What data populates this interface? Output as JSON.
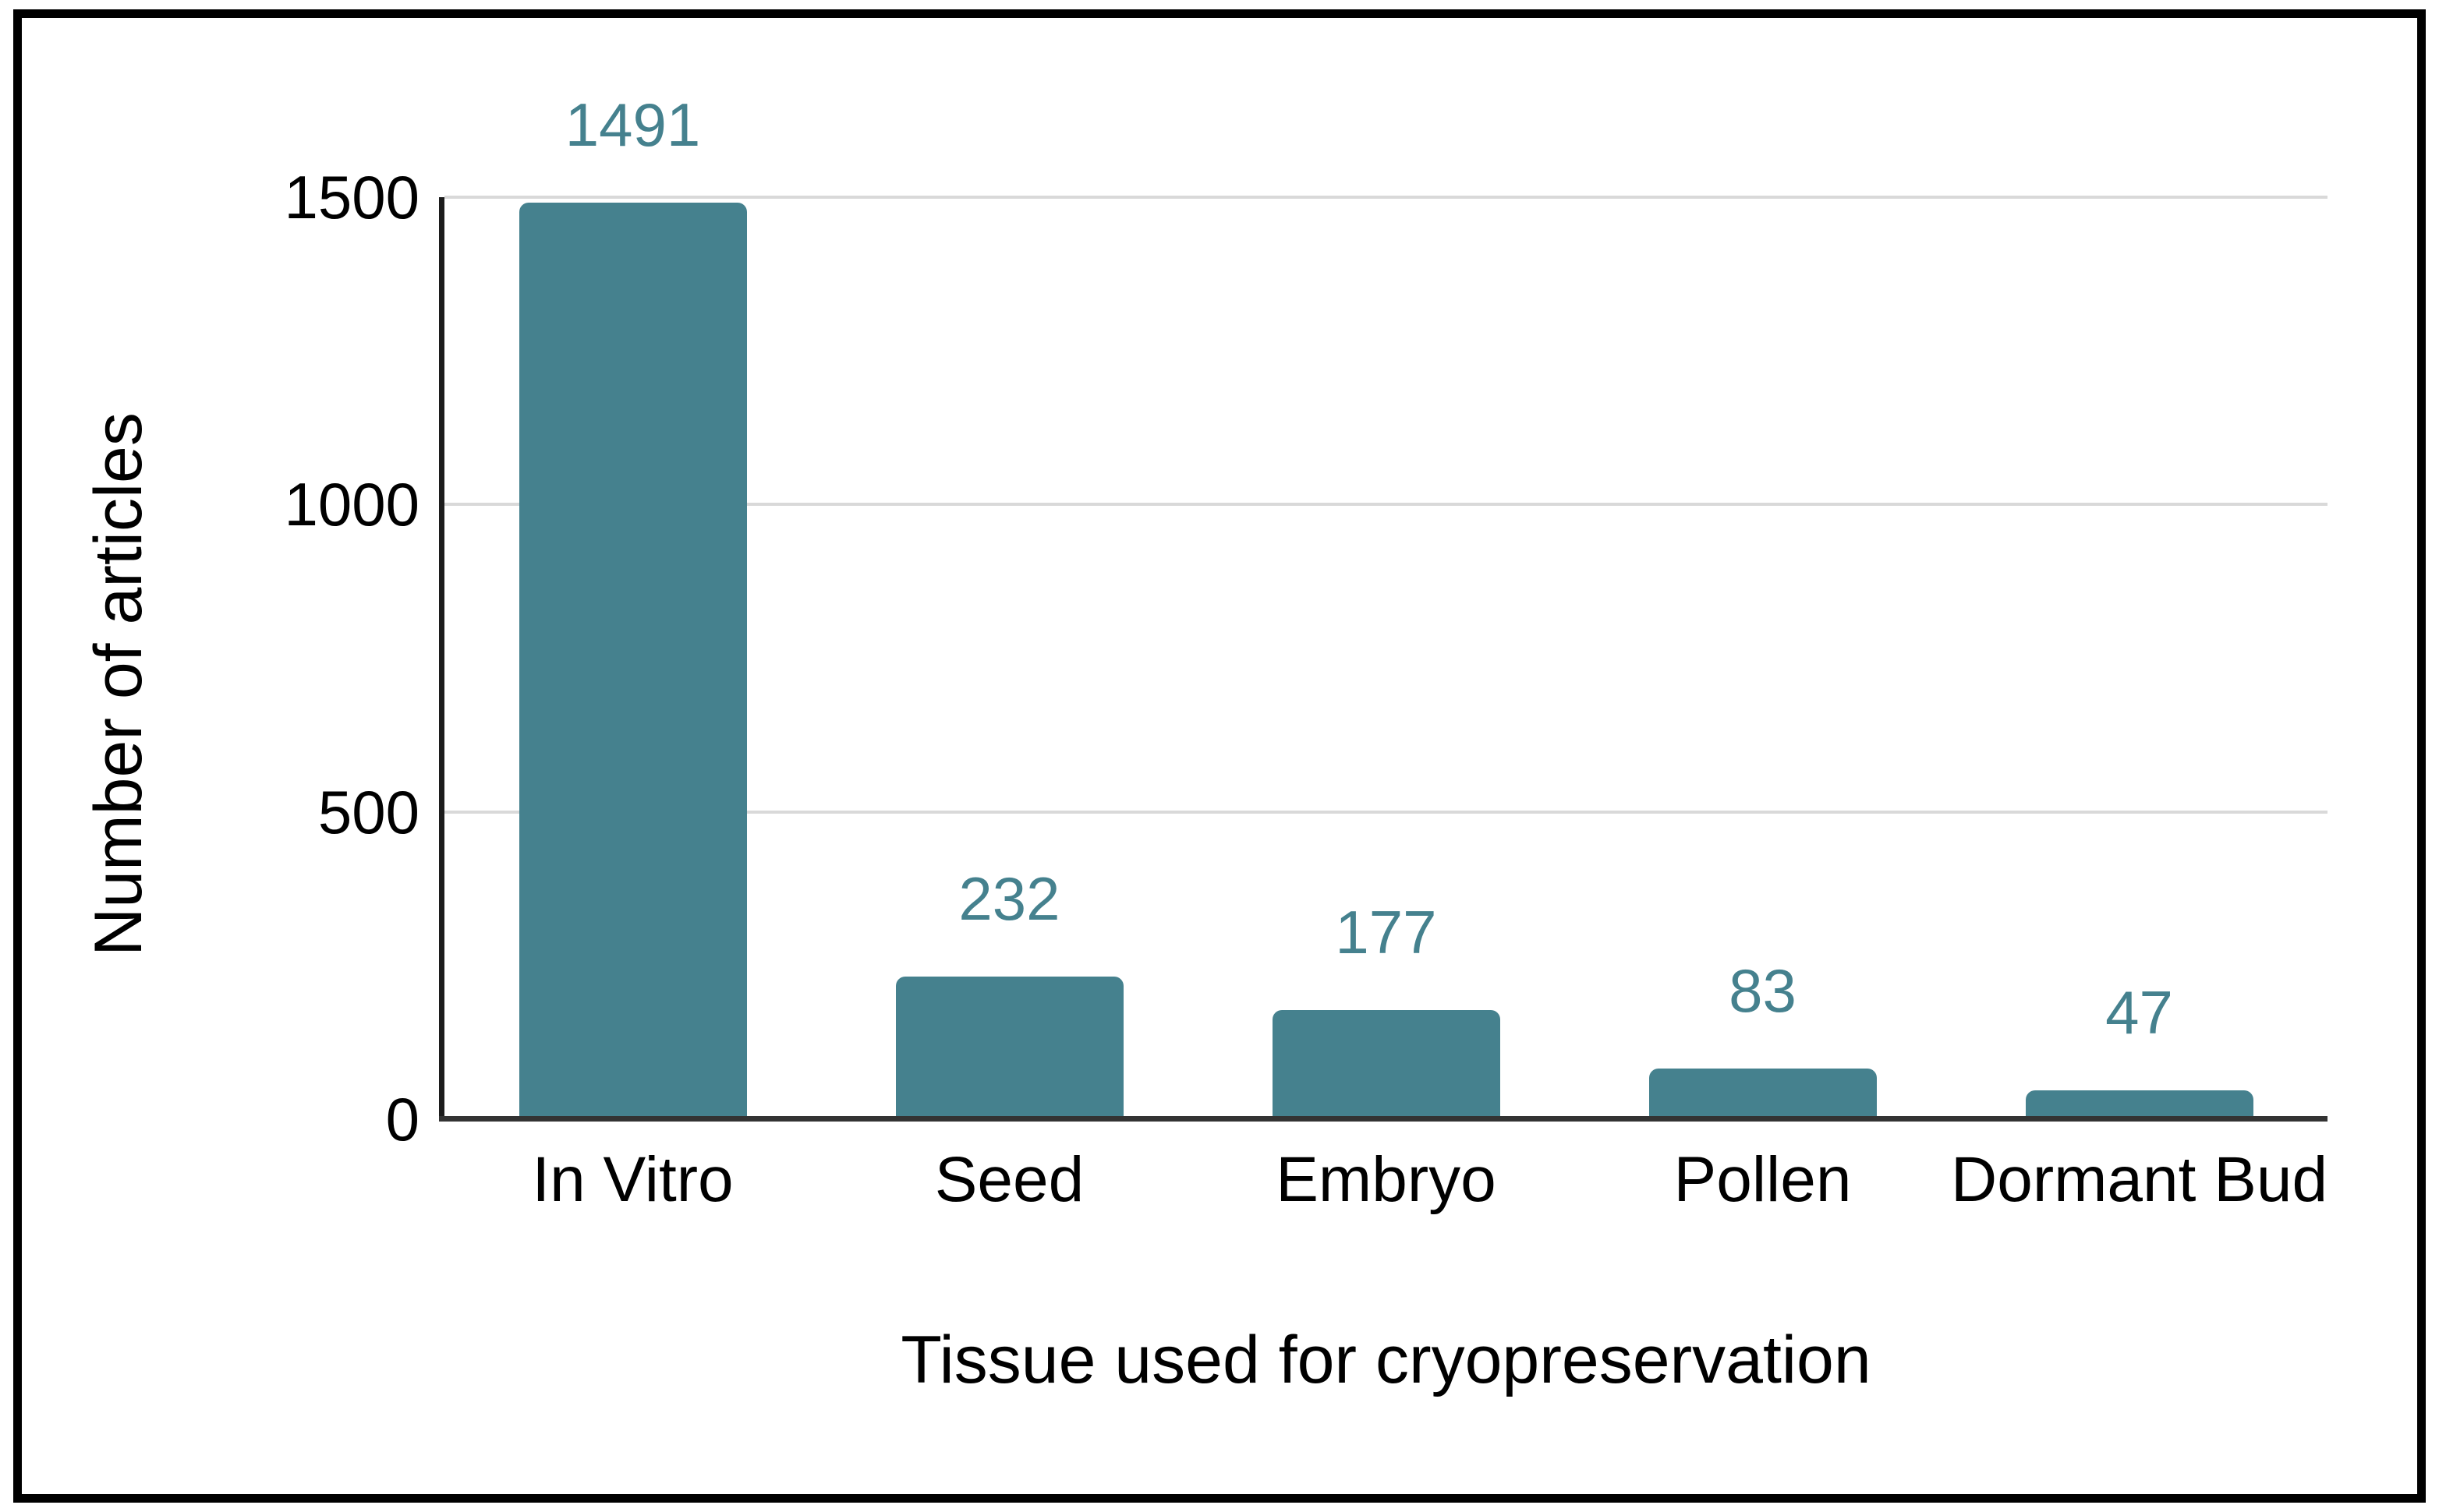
{
  "chart_data": {
    "type": "bar",
    "title": "",
    "categories": [
      "In Vitro",
      "Seed",
      "Embryo",
      "Pollen",
      "Dormant Bud"
    ],
    "values": [
      1491,
      232,
      177,
      83,
      47
    ],
    "data_labels": [
      "1491",
      "232",
      "177",
      "83",
      "47"
    ],
    "xlabel": "Tissue used for cryopreservation",
    "ylabel": "Number of articles",
    "yticks": [
      0,
      500,
      1000,
      1500
    ],
    "ylim": [
      0,
      1500
    ],
    "grid": "horizontal",
    "legend": "none",
    "colors": {
      "bar": "#45818e",
      "data_label": "#45818e",
      "axis_text": "#000000",
      "gridline": "#d9d9d9",
      "baseline": "#333333",
      "axis_line": "#1c1c1c",
      "frame": "#000000",
      "background": "#ffffff"
    }
  }
}
